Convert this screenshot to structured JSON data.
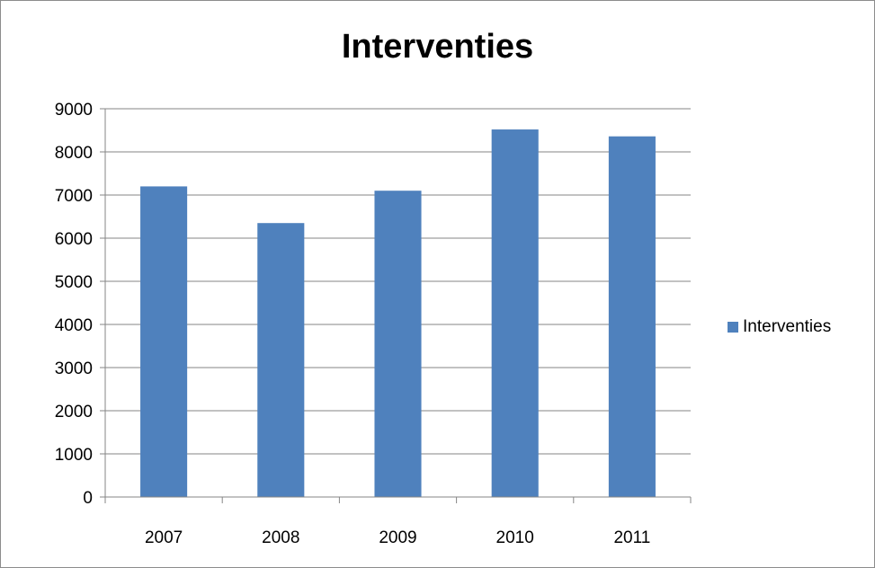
{
  "chart_data": {
    "type": "bar",
    "title": "Interventies",
    "categories": [
      "2007",
      "2008",
      "2009",
      "2010",
      "2011"
    ],
    "series": [
      {
        "name": "Interventies",
        "values": [
          7200,
          6350,
          7100,
          8520,
          8360
        ],
        "color": "#4f81bd"
      }
    ],
    "xlabel": "",
    "ylabel": "",
    "ylim": [
      0,
      9000
    ],
    "yticks": [
      "0",
      "1000",
      "2000",
      "3000",
      "4000",
      "5000",
      "6000",
      "7000",
      "8000",
      "9000"
    ],
    "grid": true,
    "legend_position": "right"
  }
}
